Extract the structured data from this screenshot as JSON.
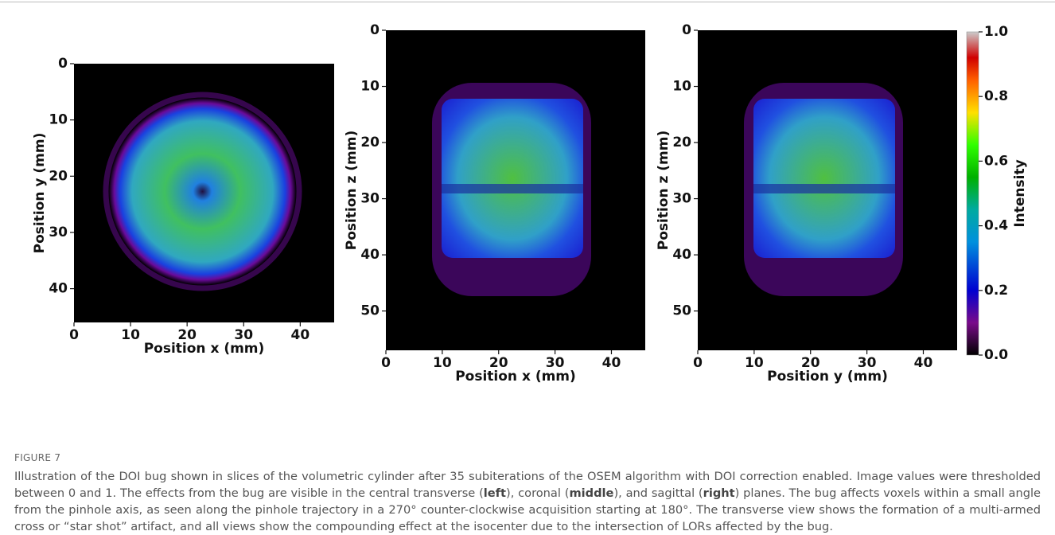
{
  "figure": {
    "panels": [
      {
        "xlabel": "Position x (mm)",
        "ylabel": "Position y (mm)",
        "xlim": [
          0,
          46
        ],
        "ylim": [
          0,
          46
        ],
        "xticks": [
          0,
          10,
          20,
          30,
          40
        ],
        "yticks": [
          0,
          10,
          20,
          30,
          40
        ],
        "shape": "circle"
      },
      {
        "xlabel": "Position x (mm)",
        "ylabel": "Position z (mm)",
        "xlim": [
          0,
          46
        ],
        "ylim": [
          0,
          57
        ],
        "xticks": [
          0,
          10,
          20,
          30,
          40
        ],
        "yticks": [
          0,
          10,
          20,
          30,
          40,
          50
        ],
        "shape": "square"
      },
      {
        "xlabel": "Position y (mm)",
        "ylabel": "Position z (mm)",
        "xlim": [
          0,
          46
        ],
        "ylim": [
          0,
          57
        ],
        "xticks": [
          0,
          10,
          20,
          30,
          40
        ],
        "yticks": [
          0,
          10,
          20,
          30,
          40,
          50
        ],
        "shape": "square"
      }
    ],
    "colorbar": {
      "label": "Intensity",
      "lim": [
        0,
        1
      ],
      "ticks": [
        {
          "value": 0,
          "label": "0.0"
        },
        0.2,
        0.4,
        0.6,
        0.8,
        {
          "value": 1,
          "label": "1.0"
        }
      ]
    }
  },
  "caption": {
    "label": "FIGURE 7",
    "parts": [
      "Illustration of the DOI bug shown in slices of the volumetric cylinder after 35 subiterations of the OSEM algorithm with DOI correction enabled. Image values were thresholded between 0 and 1. The effects from the bug are visible in the central transverse (",
      "left",
      "), coronal (",
      "middle",
      "), and sagittal (",
      "right",
      ") planes. The bug affects voxels within a small angle from the pinhole axis, as seen along the pinhole trajectory in a 270° counter-clockwise acquisition starting at 180°. The transverse view shows the formation of a multi-armed cross or “star shot” artifact, and all views show the compounding effect at the isocenter due to the intersection of LORs affected by the bug."
    ]
  }
}
